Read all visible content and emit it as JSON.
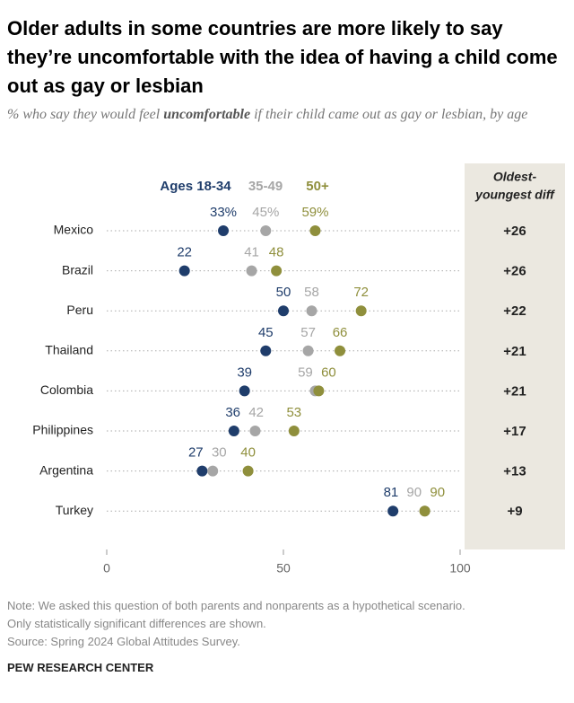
{
  "chart_data": {
    "type": "dot",
    "title": "Older adults in some countries are more likely to say they’re uncomfortable with the idea of having a child come out as gay or lesbian",
    "subtitle_parts": [
      "% who say they would feel ",
      "uncomfortable",
      " if their child came out as gay or lesbian, by age"
    ],
    "categories": [
      "Mexico",
      "Brazil",
      "Peru",
      "Thailand",
      "Colombia",
      "Philippines",
      "Argentina",
      "Turkey"
    ],
    "series": [
      {
        "name": "Ages 18-34",
        "color": "#1f3d6b",
        "label_color": "#1f3d6b",
        "values": [
          33,
          22,
          50,
          45,
          39,
          36,
          27,
          81
        ],
        "value_labels": [
          "33%",
          "22",
          "50",
          "45",
          "39",
          "36",
          "27",
          "81"
        ]
      },
      {
        "name": "35-49",
        "color": "#a6a6a6",
        "label_color": "#a6a6a6",
        "values": [
          45,
          41,
          58,
          57,
          59,
          42,
          30,
          90
        ],
        "value_labels": [
          "45%",
          "41",
          "58",
          "57",
          "59",
          "42",
          "30",
          "90"
        ]
      },
      {
        "name": "50+",
        "color": "#8f8f3c",
        "label_color": "#8f8f3c",
        "values": [
          59,
          48,
          72,
          66,
          60,
          53,
          40,
          90
        ],
        "value_labels": [
          "59%",
          "48",
          "72",
          "66",
          "60",
          "53",
          "40",
          "90"
        ]
      }
    ],
    "diff": {
      "title": [
        "Oldest-",
        "youngest diff"
      ],
      "values": [
        26,
        26,
        22,
        21,
        21,
        17,
        13,
        9
      ],
      "value_labels": [
        "+26",
        "+26",
        "+22",
        "+21",
        "+21",
        "+17",
        "+13",
        "+9"
      ]
    },
    "xlim": [
      0,
      100
    ],
    "xticks": [
      0,
      50,
      100
    ],
    "notes": [
      "Note: We asked this question of both parents and nonparents as a hypothetical scenario.",
      "Only statistically significant differences are shown.",
      "Source: Spring 2024 Global Attitudes Survey."
    ],
    "brand": "PEW RESEARCH CENTER"
  }
}
